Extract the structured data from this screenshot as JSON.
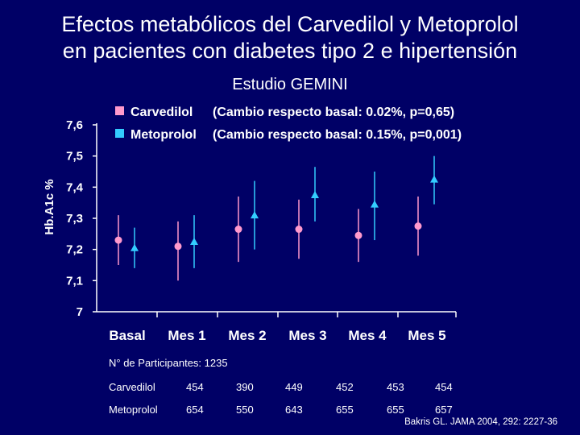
{
  "title_line1": "Efectos metabólicos del Carvedilol y Metoprolol",
  "title_line2": "en pacientes con diabetes tipo 2 e hipertensión",
  "subtitle": "Estudio GEMINI",
  "colors": {
    "background": "#000066",
    "carvedilol": "#ff99cc",
    "metoprolol": "#33ccff",
    "axis": "#ffffff"
  },
  "chart_data": {
    "type": "scatter",
    "ylabel": "Hb.A1c %",
    "ylim": [
      7,
      7.6
    ],
    "yticks": [
      "7",
      "7,1",
      "7,2",
      "7,3",
      "7,4",
      "7,5",
      "7,6"
    ],
    "categories": [
      "Basal",
      "Mes 1",
      "Mes 2",
      "Mes 3",
      "Mes 4",
      "Mes 5"
    ],
    "legend_position": "top",
    "grid": false,
    "series": [
      {
        "name": "Carvedilol",
        "annotation": "(Cambio respecto basal: 0.02%, p=0,65)",
        "marker": "circle",
        "color": "#ff99cc",
        "values": [
          7.23,
          7.21,
          7.265,
          7.265,
          7.245,
          7.275
        ],
        "err_low": [
          7.15,
          7.1,
          7.16,
          7.17,
          7.16,
          7.18
        ],
        "err_high": [
          7.31,
          7.29,
          7.37,
          7.36,
          7.33,
          7.37
        ]
      },
      {
        "name": "Metoprolol",
        "annotation": "(Cambio respecto basal: 0.15%, p=0,001)",
        "marker": "triangle",
        "color": "#33ccff",
        "values": [
          7.205,
          7.225,
          7.31,
          7.375,
          7.345,
          7.425
        ],
        "err_low": [
          7.14,
          7.14,
          7.2,
          7.29,
          7.23,
          7.345
        ],
        "err_high": [
          7.27,
          7.31,
          7.42,
          7.465,
          7.45,
          7.5
        ]
      }
    ]
  },
  "participants": {
    "heading": "N° de Participantes: 1235",
    "rows": [
      {
        "label": "Carvedilol",
        "values": [
          "454",
          "390",
          "449",
          "452",
          "453",
          "454"
        ]
      },
      {
        "label": "Metoprolol",
        "values": [
          "654",
          "550",
          "643",
          "655",
          "655",
          "657"
        ]
      }
    ]
  },
  "source": "Bakris GL. JAMA 2004, 292: 2227-36"
}
